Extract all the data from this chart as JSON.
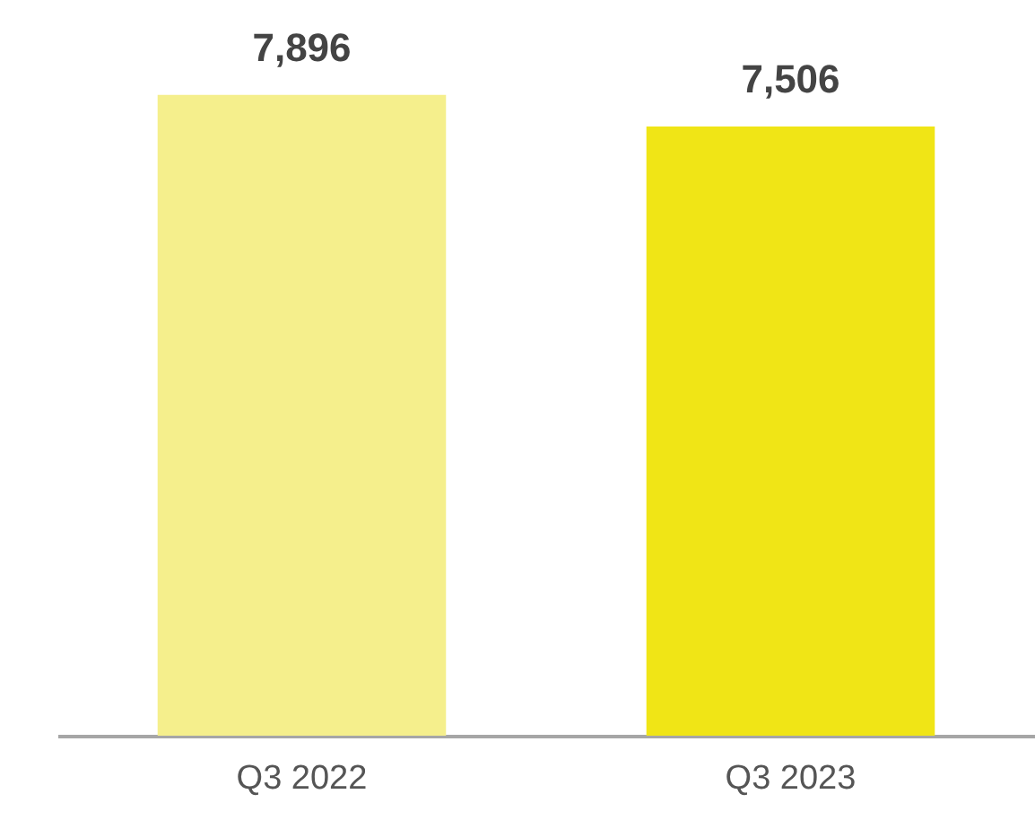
{
  "chart_data": {
    "type": "bar",
    "categories": [
      "Q3 2022",
      "Q3 2023"
    ],
    "values": [
      7896,
      7506
    ],
    "value_labels": [
      "7,896",
      "7,506"
    ],
    "colors": [
      "#f5ef8c",
      "#f0e516"
    ]
  }
}
